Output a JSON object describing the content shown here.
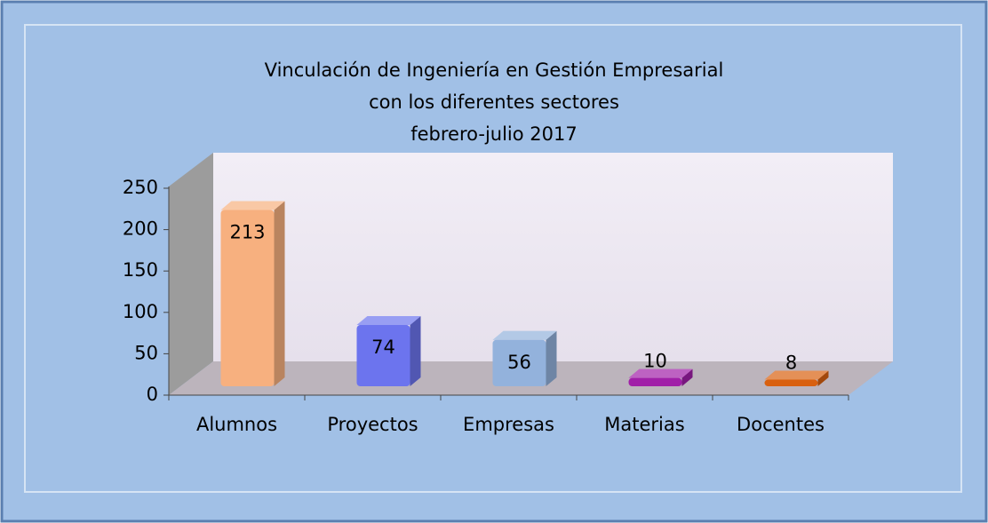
{
  "chart_data": {
    "type": "bar3d",
    "title": [
      "Vinculación de Ingeniería en Gestión Empresarial",
      "con los diferentes sectores",
      "febrero-julio 2017"
    ],
    "categories": [
      "Alumnos",
      "Proyectos",
      "Empresas",
      "Materias",
      "Docentes"
    ],
    "values": [
      213,
      74,
      56,
      10,
      8
    ],
    "colors": [
      "#f7b07f",
      "#6c74ee",
      "#93b2dc",
      "#a11fa8",
      "#d9600f"
    ],
    "ylim": [
      0,
      250
    ],
    "yticks": [
      0,
      50,
      100,
      150,
      200,
      250
    ]
  }
}
